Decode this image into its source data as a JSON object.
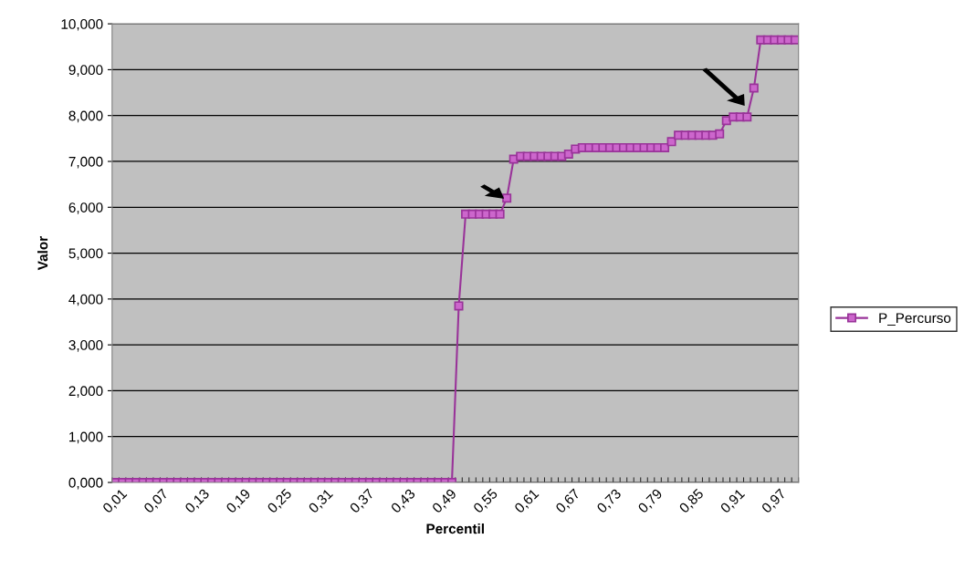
{
  "chart_data": {
    "type": "line",
    "xlabel": "Percentil",
    "ylabel": "Valor",
    "categories": [
      "0,01",
      null,
      null,
      null,
      null,
      null,
      "0,07",
      null,
      null,
      null,
      null,
      null,
      "0,13",
      null,
      null,
      null,
      null,
      null,
      "0,19",
      null,
      null,
      null,
      null,
      null,
      "0,25",
      null,
      null,
      null,
      null,
      null,
      "0,31",
      null,
      null,
      null,
      null,
      null,
      "0,37",
      null,
      null,
      null,
      null,
      null,
      "0,43",
      null,
      null,
      null,
      null,
      null,
      "0,49",
      null,
      null,
      null,
      null,
      null,
      "0,55",
      null,
      null,
      null,
      null,
      null,
      "0,61",
      null,
      null,
      null,
      null,
      null,
      "0,67",
      null,
      null,
      null,
      null,
      null,
      "0,73",
      null,
      null,
      null,
      null,
      null,
      "0,79",
      null,
      null,
      null,
      null,
      null,
      "0,85",
      null,
      null,
      null,
      null,
      null,
      "0,91",
      null,
      null,
      null,
      null,
      null,
      "0,97",
      null,
      null,
      null
    ],
    "series": [
      {
        "name": "P_Percurso",
        "color": "#993399",
        "values": [
          0,
          0,
          0,
          0,
          0,
          0,
          0,
          0,
          0,
          0,
          0,
          0,
          0,
          0,
          0,
          0,
          0,
          0,
          0,
          0,
          0,
          0,
          0,
          0,
          0,
          0,
          0,
          0,
          0,
          0,
          0,
          0,
          0,
          0,
          0,
          0,
          0,
          0,
          0,
          0,
          0,
          0,
          0,
          0,
          0,
          0,
          0,
          0,
          0,
          0,
          3.85,
          5.85,
          5.85,
          5.85,
          5.85,
          5.85,
          5.85,
          6.2,
          7.05,
          7.11,
          7.11,
          7.11,
          7.11,
          7.11,
          7.11,
          7.11,
          7.16,
          7.27,
          7.3,
          7.3,
          7.3,
          7.3,
          7.3,
          7.3,
          7.3,
          7.3,
          7.3,
          7.3,
          7.3,
          7.3,
          7.3,
          7.43,
          7.57,
          7.57,
          7.57,
          7.57,
          7.57,
          7.57,
          7.6,
          7.89,
          7.97,
          7.97,
          7.97,
          8.6,
          9.65,
          9.65,
          9.65,
          9.65,
          9.65,
          9.65
        ]
      }
    ],
    "ylim": [
      0,
      10
    ],
    "yticks": [
      {
        "value": 0,
        "label": "0,000"
      },
      {
        "value": 1,
        "label": "1,000"
      },
      {
        "value": 2,
        "label": "2,000"
      },
      {
        "value": 3,
        "label": "3,000"
      },
      {
        "value": 4,
        "label": "4,000"
      },
      {
        "value": 5,
        "label": "5,000"
      },
      {
        "value": 6,
        "label": "6,000"
      },
      {
        "value": 7,
        "label": "7,000"
      },
      {
        "value": 8,
        "label": "8,000"
      },
      {
        "value": 9,
        "label": "9,000"
      },
      {
        "value": 10,
        "label": "10,000"
      }
    ],
    "grid": "y",
    "legend": "right",
    "marker": "square",
    "line_style": "solid"
  }
}
